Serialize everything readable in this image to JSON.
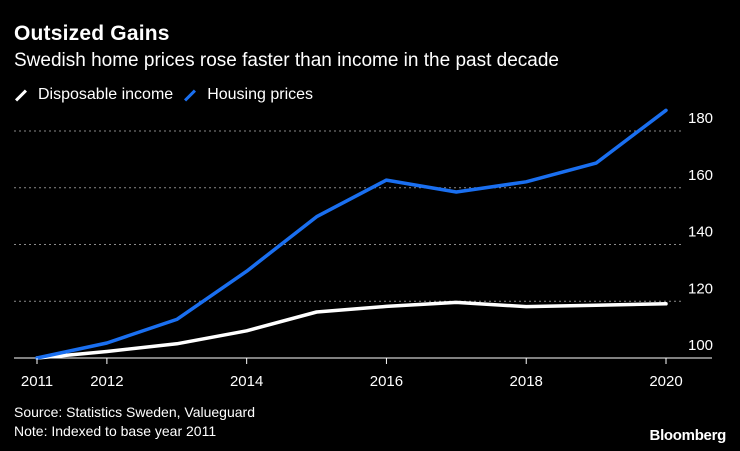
{
  "header": {
    "title": "Outsized Gains",
    "subtitle": "Swedish home prices rose faster than income in the past decade"
  },
  "legend": {
    "items": [
      {
        "label": "Disposable income",
        "color": "#ffffff"
      },
      {
        "label": "Housing prices",
        "color": "#1a6ff0"
      }
    ]
  },
  "footer": {
    "source": "Source: Statistics Sweden, Valueguard",
    "note": "Note: Indexed to base year 2011",
    "brand": "Bloomberg"
  },
  "chart_data": {
    "type": "line",
    "title": "Outsized Gains",
    "subtitle": "Swedish home prices rose faster than income in the past decade",
    "x": [
      2011,
      2012,
      2013,
      2014,
      2015,
      2016,
      2017,
      2018,
      2019,
      2020
    ],
    "x_ticks": [
      "2011",
      "2012",
      "2014",
      "2016",
      "2018",
      "2020"
    ],
    "y_ticks": [
      "100",
      "120",
      "140",
      "160",
      "180"
    ],
    "ylim": [
      100,
      190
    ],
    "y_axis_side": "right",
    "grid": true,
    "series": [
      {
        "name": "Disposable income",
        "color": "#ffffff",
        "values": [
          100,
          102.3,
          105,
          109.6,
          116.2,
          118.2,
          119.6,
          118.1,
          118.6,
          119.1
        ]
      },
      {
        "name": "Housing prices",
        "color": "#1a6ff0",
        "values": [
          100,
          105.3,
          113.6,
          130.6,
          149.8,
          162.7,
          158.5,
          162.1,
          168.7,
          187.3
        ]
      }
    ]
  }
}
